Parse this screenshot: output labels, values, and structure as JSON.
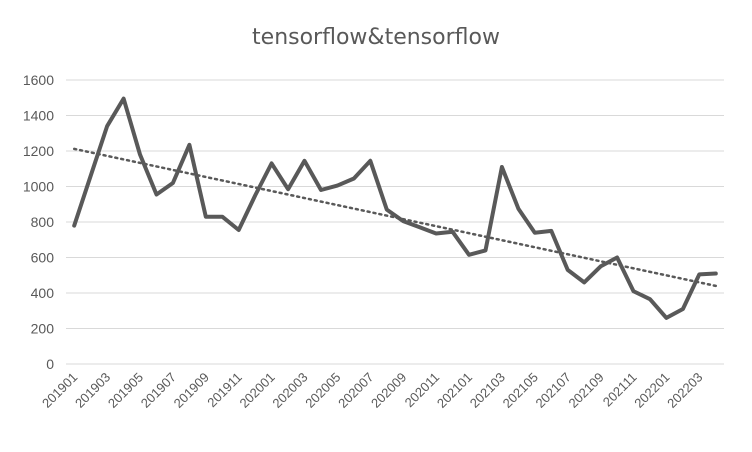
{
  "chart_data": {
    "type": "line",
    "title": "tensorflow&tensorflow",
    "xlabel": "",
    "ylabel": "",
    "ylim": [
      0,
      1600
    ],
    "yticks": [
      0,
      200,
      400,
      600,
      800,
      1000,
      1200,
      1400,
      1600
    ],
    "grid": true,
    "x": [
      "201901",
      "201902",
      "201903",
      "201904",
      "201905",
      "201906",
      "201907",
      "201908",
      "201909",
      "201910",
      "201911",
      "201912",
      "202001",
      "202002",
      "202003",
      "202004",
      "202005",
      "202006",
      "202007",
      "202008",
      "202009",
      "202010",
      "202011",
      "202012",
      "202101",
      "202102",
      "202103",
      "202104",
      "202105",
      "202106",
      "202107",
      "202108",
      "202109",
      "202110",
      "202111",
      "202112",
      "202201",
      "202202",
      "202203",
      "202204"
    ],
    "x_tick_labels": [
      "201901",
      "201903",
      "201905",
      "201907",
      "201909",
      "201911",
      "202001",
      "202003",
      "202005",
      "202007",
      "202009",
      "202011",
      "202101",
      "202103",
      "202105",
      "202107",
      "202109",
      "202111",
      "202201",
      "202203"
    ],
    "series": [
      {
        "values": [
          780,
          1060,
          1340,
          1495,
          1180,
          955,
          1020,
          1235,
          830,
          830,
          755,
          950,
          1130,
          985,
          1145,
          980,
          1005,
          1045,
          1145,
          870,
          805,
          770,
          735,
          745,
          615,
          640,
          1110,
          875,
          740,
          750,
          530,
          460,
          550,
          600,
          410,
          365,
          260,
          310,
          505,
          510
        ]
      }
    ],
    "trendline": {
      "type": "linear",
      "style": "dotted",
      "start": 1212,
      "end": 440
    }
  }
}
